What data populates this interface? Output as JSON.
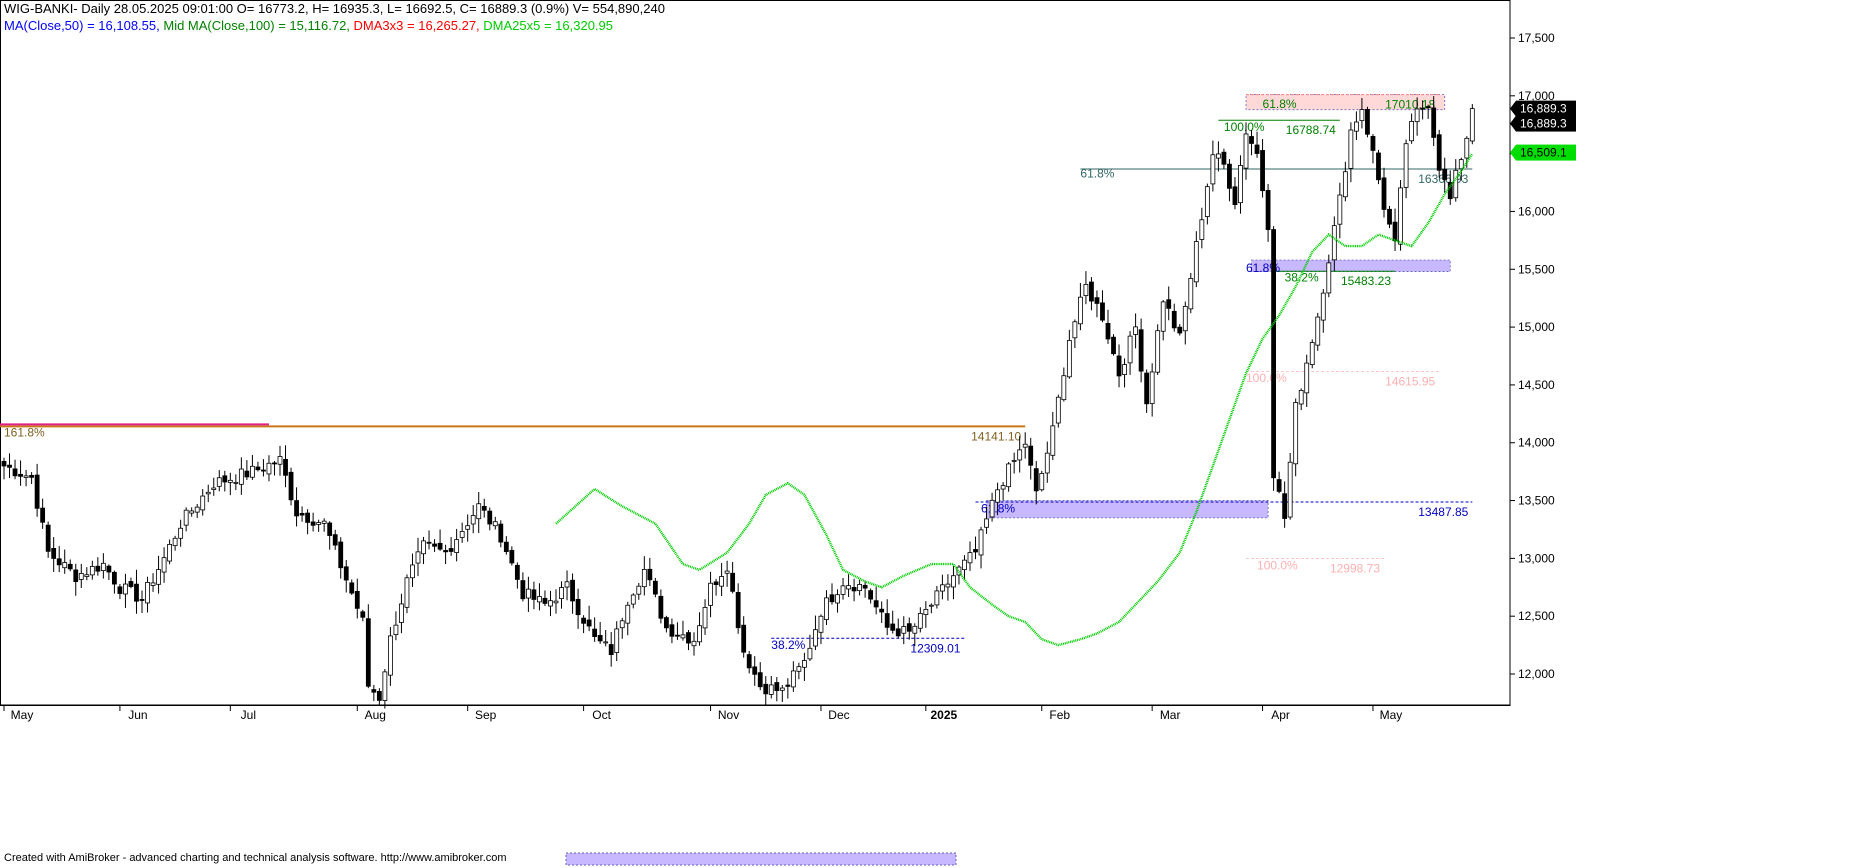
{
  "header": {
    "line1": "WIG-BANKI- Daily 28.05.2025 09:01:00 O= 16773.2, H= 16935.3, L= 16692.5, C= 16889.3 (0.9%) V= 554,890,240",
    "ma50_text": "MA(Close,50) = 16,108.55,",
    "ma100_text": "Mid MA(Close,100) = 15,116.72,",
    "dma3_text": "DMA3x3 = 16,265.27,",
    "dma25_text": "DMA25x5 = 16,320.95"
  },
  "footer": {
    "credit": "Created with AmiBroker - advanced charting and technical analysis software. http://www.amibroker.com"
  },
  "colors": {
    "ma50": "#0000ff",
    "ma100": "#008000",
    "dma3": "#ff0000",
    "dma25": "#00cc00",
    "up_candle": "#ffffff",
    "down_candle": "#000000",
    "fib_zone": "#b8a8ff",
    "resistance_zone": "#ffd4d4"
  },
  "chart_data": {
    "type": "candlestick",
    "symbol": "WIG-BANKI",
    "ylim": [
      11700,
      17800
    ],
    "y_ticks": [
      12000,
      12500,
      13000,
      13500,
      14000,
      14500,
      15000,
      15500,
      16000,
      16500,
      17000,
      17500
    ],
    "y_tick_labels": [
      "12,000",
      "12,500",
      "13,000",
      "13,500",
      "14,000",
      "14,500",
      "15,000",
      "15,500",
      "16,000",
      "16,500",
      "17,000",
      "17,500"
    ],
    "x_months": [
      {
        "label": "May",
        "bar": 0
      },
      {
        "label": "Jun",
        "bar": 21
      },
      {
        "label": "Jul",
        "bar": 41
      },
      {
        "label": "Aug",
        "bar": 64
      },
      {
        "label": "Sep",
        "bar": 84
      },
      {
        "label": "Oct",
        "bar": 105
      },
      {
        "label": "Nov",
        "bar": 128
      },
      {
        "label": "Dec",
        "bar": 148
      },
      {
        "label": "2025",
        "bar": 167
      },
      {
        "label": "Feb",
        "bar": 188
      },
      {
        "label": "Mar",
        "bar": 208
      },
      {
        "label": "Apr",
        "bar": 228
      },
      {
        "label": "May",
        "bar": 248
      }
    ],
    "close_anchors": [
      [
        0,
        13800
      ],
      [
        5,
        13700
      ],
      [
        8,
        13050
      ],
      [
        13,
        12850
      ],
      [
        18,
        12950
      ],
      [
        21,
        12750
      ],
      [
        25,
        12650
      ],
      [
        29,
        13000
      ],
      [
        32,
        13300
      ],
      [
        38,
        13650
      ],
      [
        45,
        13750
      ],
      [
        50,
        13850
      ],
      [
        53,
        13400
      ],
      [
        58,
        13300
      ],
      [
        63,
        12700
      ],
      [
        65,
        12450
      ],
      [
        66,
        11900
      ],
      [
        68,
        11800
      ],
      [
        70,
        12300
      ],
      [
        73,
        12800
      ],
      [
        76,
        13100
      ],
      [
        80,
        13050
      ],
      [
        86,
        13450
      ],
      [
        90,
        13200
      ],
      [
        94,
        12700
      ],
      [
        98,
        12600
      ],
      [
        102,
        12750
      ],
      [
        107,
        12300
      ],
      [
        110,
        12200
      ],
      [
        113,
        12650
      ],
      [
        116,
        12900
      ],
      [
        120,
        12400
      ],
      [
        125,
        12300
      ],
      [
        128,
        12750
      ],
      [
        131,
        12950
      ],
      [
        134,
        12200
      ],
      [
        137,
        11900
      ],
      [
        141,
        11850
      ],
      [
        145,
        12100
      ],
      [
        148,
        12550
      ],
      [
        152,
        12800
      ],
      [
        156,
        12750
      ],
      [
        160,
        12400
      ],
      [
        164,
        12350
      ],
      [
        168,
        12600
      ],
      [
        172,
        12850
      ],
      [
        176,
        13050
      ],
      [
        180,
        13600
      ],
      [
        185,
        14000
      ],
      [
        187,
        13550
      ],
      [
        190,
        14100
      ],
      [
        193,
        14900
      ],
      [
        196,
        15350
      ],
      [
        199,
        15100
      ],
      [
        202,
        14600
      ],
      [
        205,
        15000
      ],
      [
        207,
        14350
      ],
      [
        210,
        15250
      ],
      [
        213,
        14900
      ],
      [
        216,
        15700
      ],
      [
        219,
        16500
      ],
      [
        221,
        16400
      ],
      [
        223,
        16100
      ],
      [
        225,
        16700
      ],
      [
        227,
        16500
      ],
      [
        229,
        15900
      ],
      [
        230,
        13750
      ],
      [
        232,
        13350
      ],
      [
        234,
        14300
      ],
      [
        236,
        14700
      ],
      [
        238,
        15100
      ],
      [
        240,
        15600
      ],
      [
        242,
        16100
      ],
      [
        244,
        16700
      ],
      [
        246,
        16900
      ],
      [
        248,
        16500
      ],
      [
        250,
        16050
      ],
      [
        252,
        15700
      ],
      [
        254,
        16600
      ],
      [
        256,
        16850
      ],
      [
        258,
        16950
      ],
      [
        260,
        16400
      ],
      [
        262,
        16100
      ],
      [
        263,
        16300
      ],
      [
        265,
        16650
      ],
      [
        266,
        16889
      ]
    ],
    "dma25_anchors": [
      [
        -1,
        13300
      ],
      [
        6,
        13600
      ],
      [
        11,
        13450
      ],
      [
        17,
        13300
      ],
      [
        22,
        12950
      ],
      [
        25,
        12900
      ],
      [
        30,
        13050
      ],
      [
        34,
        13300
      ],
      [
        37,
        13550
      ],
      [
        41,
        13650
      ],
      [
        44,
        13550
      ],
      [
        48,
        13200
      ],
      [
        51,
        12900
      ],
      [
        55,
        12800
      ],
      [
        58,
        12750
      ],
      [
        62,
        12850
      ],
      [
        67,
        12950
      ],
      [
        71,
        12950
      ],
      [
        74,
        12750
      ],
      [
        78,
        12600
      ],
      [
        81,
        12500
      ],
      [
        84,
        12450
      ],
      [
        87,
        12300
      ],
      [
        90,
        12250
      ],
      [
        94,
        12300
      ],
      [
        97,
        12350
      ],
      [
        101,
        12450
      ],
      [
        105,
        12650
      ],
      [
        108,
        12800
      ],
      [
        112,
        13050
      ],
      [
        115,
        13400
      ],
      [
        118,
        13800
      ],
      [
        121,
        14200
      ],
      [
        124,
        14600
      ],
      [
        127,
        14900
      ],
      [
        130,
        15100
      ],
      [
        133,
        15350
      ],
      [
        136,
        15650
      ],
      [
        139,
        15800
      ],
      [
        142,
        15700
      ],
      [
        145,
        15700
      ],
      [
        148,
        15800
      ],
      [
        151,
        15750
      ],
      [
        154,
        15700
      ],
      [
        157,
        15900
      ],
      [
        160,
        16150
      ],
      [
        163,
        16350
      ],
      [
        165,
        16500
      ]
    ],
    "dma25_offset": 101,
    "fib_lines": [
      {
        "y": 14141.1,
        "x0": -1,
        "x1": 185,
        "color": "#c87818",
        "label": "14141.10",
        "label_color": "#806020"
      },
      {
        "y": 16366.93,
        "x0": 195,
        "x1": 266,
        "color": "#336666",
        "label": "16366.93",
        "label_color": "#336666"
      },
      {
        "y": 16788.74,
        "x0": 220,
        "x1": 242,
        "color": "#008000",
        "label": "16788.74",
        "label_color": "#008000"
      },
      {
        "y": 15483.23,
        "x0": 230,
        "x1": 252,
        "color": "#008000",
        "label": "15483.23",
        "label_color": "#008000"
      },
      {
        "y": 14615.95,
        "x0": 225,
        "x1": 260,
        "color": "#ffc8c8",
        "label": "14615.95",
        "label_color": "#ffb0b0"
      },
      {
        "y": 12309.01,
        "x0": 139,
        "x1": 174,
        "color": "#0000c0",
        "label": "12309.01",
        "label_color": "#0000c0"
      },
      {
        "y": 13487.85,
        "x0": 176,
        "x1": 266,
        "color": "#0000c0",
        "label": "13487.85",
        "label_color": "#0000c0"
      },
      {
        "y": 17010.18,
        "x0": 225,
        "x1": 260,
        "color": "#ff8080",
        "label": "17010.18",
        "label_color": "#008000"
      },
      {
        "y": 12998.73,
        "x0": 225,
        "x1": 250,
        "color": "#ffc8c8",
        "label": "12998.73",
        "label_color": "#ffb0b0"
      }
    ],
    "fib_labels": [
      {
        "text": "161.8%",
        "bar": 0,
        "y": 14090,
        "color": "#806020"
      },
      {
        "text": "61.8%",
        "bar": 195,
        "y": 16330,
        "color": "#336666"
      },
      {
        "text": "100.0%",
        "bar": 221,
        "y": 16730,
        "color": "#008000"
      },
      {
        "text": "61.8%",
        "bar": 228,
        "y": 16930,
        "color": "#008000"
      },
      {
        "text": "38.2%",
        "bar": 232,
        "y": 15430,
        "color": "#008000"
      },
      {
        "text": "61.8%",
        "bar": 225,
        "y": 15510,
        "color": "#0000c0"
      },
      {
        "text": "100.0%",
        "bar": 225,
        "y": 14560,
        "color": "#ffb0b0"
      },
      {
        "text": "100.0%",
        "bar": 227,
        "y": 12940,
        "color": "#ffb0b0"
      },
      {
        "text": "38.2%",
        "bar": 139,
        "y": 12250,
        "color": "#0000c0"
      },
      {
        "text": "61.8%",
        "bar": 177,
        "y": 13430,
        "color": "#0000c0"
      }
    ],
    "zones": [
      {
        "y_low": 13350,
        "y_high": 13500,
        "x0": 178,
        "x1": 229,
        "color": "#c8b8ff"
      },
      {
        "y_low": 15480,
        "y_high": 15580,
        "x0": 226,
        "x1": 262,
        "color": "#c8b8ff"
      },
      {
        "y_low": 16880,
        "y_high": 17010,
        "x0": 225,
        "x1": 261,
        "color": "#ffd8d8"
      }
    ],
    "price_tags": [
      {
        "text": "16,889.3",
        "y": 16889.3,
        "bg": "#000000",
        "fg": "#ffffff"
      },
      {
        "text": "16,889.3",
        "y": 16760,
        "bg": "#000000",
        "fg": "#ffffff"
      },
      {
        "text": "16,509.1",
        "y": 16509.1,
        "bg": "#00dd00",
        "fg": "#000000"
      }
    ]
  }
}
